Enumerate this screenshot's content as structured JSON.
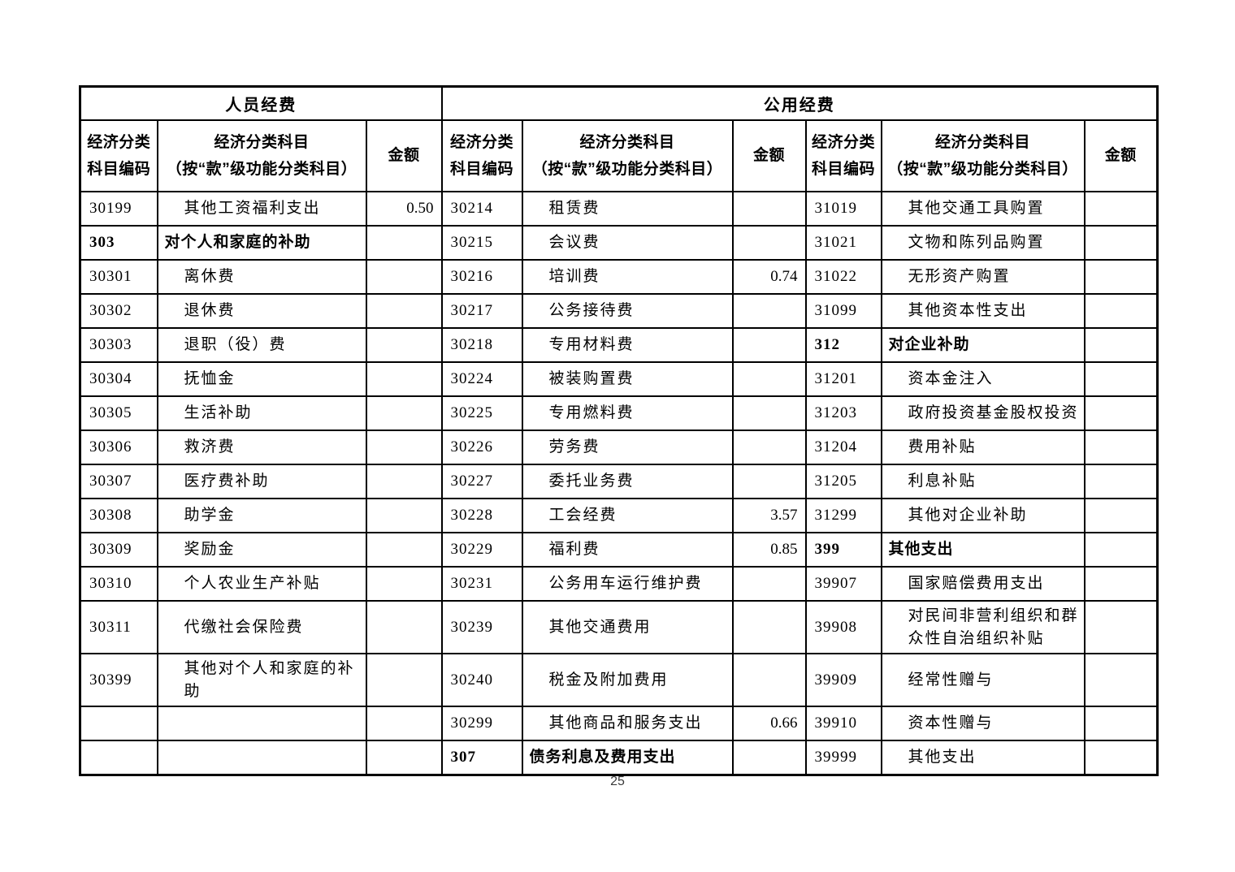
{
  "document": {
    "page_number": "25"
  },
  "colors": {
    "text": "#000000",
    "border": "#000000",
    "background": "#ffffff"
  },
  "table": {
    "group_headers": [
      {
        "label": "人员经费",
        "col_span": 3
      },
      {
        "label": "公用经费",
        "col_span": 6
      }
    ],
    "column_headers": {
      "code": "经济分类\n科目编码",
      "name": "经济分类科目\n（按“款”级功能分类科目）",
      "amount": "金额"
    },
    "row_count": 16,
    "section_order": [
      "left",
      "middle",
      "right"
    ],
    "sections": {
      "left": {
        "group": "人员经费",
        "rows": [
          {
            "code": "30199",
            "name": "其他工资福利支出",
            "amount": "0.50"
          },
          {
            "code": "303",
            "name": "对个人和家庭的补助",
            "amount": "",
            "bold": true
          },
          {
            "code": "30301",
            "name": "离休费",
            "amount": ""
          },
          {
            "code": "30302",
            "name": "退休费",
            "amount": ""
          },
          {
            "code": "30303",
            "name": "退职（役）费",
            "amount": ""
          },
          {
            "code": "30304",
            "name": "抚恤金",
            "amount": ""
          },
          {
            "code": "30305",
            "name": "生活补助",
            "amount": ""
          },
          {
            "code": "30306",
            "name": "救济费",
            "amount": ""
          },
          {
            "code": "30307",
            "name": "医疗费补助",
            "amount": ""
          },
          {
            "code": "30308",
            "name": "助学金",
            "amount": ""
          },
          {
            "code": "30309",
            "name": "奖励金",
            "amount": ""
          },
          {
            "code": "30310",
            "name": "个人农业生产补贴",
            "amount": ""
          },
          {
            "code": "30311",
            "name": "代缴社会保险费",
            "amount": ""
          },
          {
            "code": "30399",
            "name": "其他对个人和家庭的补助",
            "amount": ""
          },
          {
            "code": "",
            "name": "",
            "amount": ""
          },
          {
            "code": "",
            "name": "",
            "amount": ""
          }
        ]
      },
      "middle": {
        "group": "公用经费",
        "rows": [
          {
            "code": "30214",
            "name": "租赁费",
            "amount": ""
          },
          {
            "code": "30215",
            "name": "会议费",
            "amount": ""
          },
          {
            "code": "30216",
            "name": "培训费",
            "amount": "0.74"
          },
          {
            "code": "30217",
            "name": "公务接待费",
            "amount": ""
          },
          {
            "code": "30218",
            "name": "专用材料费",
            "amount": ""
          },
          {
            "code": "30224",
            "name": "被装购置费",
            "amount": ""
          },
          {
            "code": "30225",
            "name": "专用燃料费",
            "amount": ""
          },
          {
            "code": "30226",
            "name": "劳务费",
            "amount": ""
          },
          {
            "code": "30227",
            "name": "委托业务费",
            "amount": ""
          },
          {
            "code": "30228",
            "name": "工会经费",
            "amount": "3.57"
          },
          {
            "code": "30229",
            "name": "福利费",
            "amount": "0.85"
          },
          {
            "code": "30231",
            "name": "公务用车运行维护费",
            "amount": ""
          },
          {
            "code": "30239",
            "name": "其他交通费用",
            "amount": ""
          },
          {
            "code": "30240",
            "name": "税金及附加费用",
            "amount": ""
          },
          {
            "code": "30299",
            "name": "其他商品和服务支出",
            "amount": "0.66"
          },
          {
            "code": "307",
            "name": "债务利息及费用支出",
            "amount": "",
            "bold": true
          }
        ]
      },
      "right": {
        "group": "公用经费",
        "rows": [
          {
            "code": "31019",
            "name": "其他交通工具购置",
            "amount": ""
          },
          {
            "code": "31021",
            "name": "文物和陈列品购置",
            "amount": ""
          },
          {
            "code": "31022",
            "name": "无形资产购置",
            "amount": ""
          },
          {
            "code": "31099",
            "name": "其他资本性支出",
            "amount": ""
          },
          {
            "code": "312",
            "name": "对企业补助",
            "amount": "",
            "bold": true
          },
          {
            "code": "31201",
            "name": "资本金注入",
            "amount": ""
          },
          {
            "code": "31203",
            "name": "政府投资基金股权投资",
            "amount": ""
          },
          {
            "code": "31204",
            "name": "费用补贴",
            "amount": ""
          },
          {
            "code": "31205",
            "name": "利息补贴",
            "amount": ""
          },
          {
            "code": "31299",
            "name": "其他对企业补助",
            "amount": ""
          },
          {
            "code": "399",
            "name": "其他支出",
            "amount": "",
            "bold": true
          },
          {
            "code": "39907",
            "name": "国家赔偿费用支出",
            "amount": ""
          },
          {
            "code": "39908",
            "name": "对民间非营利组织和群众性自治组织补贴",
            "amount": ""
          },
          {
            "code": "39909",
            "name": "经常性赠与",
            "amount": ""
          },
          {
            "code": "39910",
            "name": "资本性赠与",
            "amount": ""
          },
          {
            "code": "39999",
            "name": "其他支出",
            "amount": ""
          }
        ]
      }
    }
  }
}
